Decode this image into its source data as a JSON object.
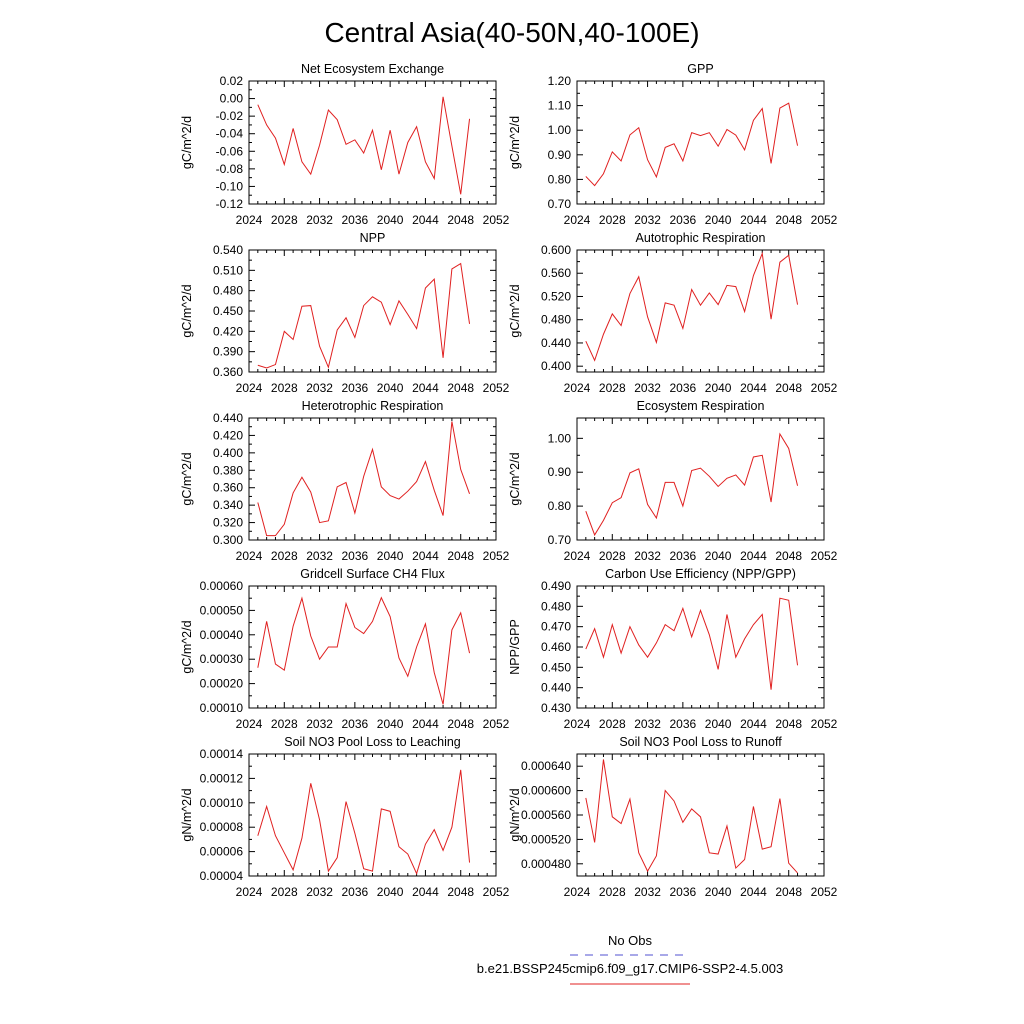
{
  "title": "Central Asia(40-50N,40-100E)",
  "legend": {
    "items": [
      {
        "label": "No Obs",
        "color": "#5050d0",
        "style": "dashed"
      },
      {
        "label": "b.e21.BSSP245cmip6.f09_g17.CMIP6-SSP2-4.5.003",
        "color": "#e02020",
        "style": "solid"
      }
    ]
  },
  "chart_data": [
    {
      "type": "line",
      "title": "Net Ecosystem Exchange",
      "ylabel": "gC/m^2/d",
      "xlim": [
        2024,
        2052
      ],
      "xticks": [
        2024,
        2028,
        2032,
        2036,
        2040,
        2044,
        2048,
        2052
      ],
      "ylim": [
        -0.12,
        0.02
      ],
      "yticks": [
        "-0.12",
        "-0.10",
        "-0.08",
        "-0.06",
        "-0.04",
        "-0.02",
        "0.00",
        "0.02"
      ],
      "yminor": 1,
      "grid": false,
      "x": [
        2025,
        2026,
        2027,
        2028,
        2029,
        2030,
        2031,
        2032,
        2033,
        2034,
        2035,
        2036,
        2037,
        2038,
        2039,
        2040,
        2041,
        2042,
        2043,
        2044,
        2045,
        2046,
        2047,
        2048,
        2049
      ],
      "series": [
        {
          "color": "#e02020",
          "values": [
            -0.007,
            -0.03,
            -0.045,
            -0.075,
            -0.034,
            -0.072,
            -0.086,
            -0.053,
            -0.013,
            -0.024,
            -0.052,
            -0.047,
            -0.062,
            -0.036,
            -0.081,
            -0.036,
            -0.086,
            -0.05,
            -0.032,
            -0.072,
            -0.091,
            0.002,
            -0.054,
            -0.109,
            -0.023
          ]
        }
      ]
    },
    {
      "type": "line",
      "title": "GPP",
      "ylabel": "gC/m^2/d",
      "xlim": [
        2024,
        2052
      ],
      "xticks": [
        2024,
        2028,
        2032,
        2036,
        2040,
        2044,
        2048,
        2052
      ],
      "ylim": [
        0.7,
        1.2
      ],
      "yticks": [
        "0.70",
        "0.80",
        "0.90",
        "1.00",
        "1.10",
        "1.20"
      ],
      "yminor": 1,
      "grid": false,
      "x": [
        2025,
        2026,
        2027,
        2028,
        2029,
        2030,
        2031,
        2032,
        2033,
        2034,
        2035,
        2036,
        2037,
        2038,
        2039,
        2040,
        2041,
        2042,
        2043,
        2044,
        2045,
        2046,
        2047,
        2048,
        2049
      ],
      "series": [
        {
          "color": "#e02020",
          "values": [
            0.812,
            0.775,
            0.823,
            0.912,
            0.875,
            0.981,
            1.01,
            0.88,
            0.81,
            0.93,
            0.945,
            0.875,
            0.99,
            0.978,
            0.99,
            0.935,
            1.003,
            0.98,
            0.92,
            1.04,
            1.088,
            0.865,
            1.09,
            1.11,
            0.937
          ]
        }
      ]
    },
    {
      "type": "line",
      "title": "NPP",
      "ylabel": "gC/m^2/d",
      "xlim": [
        2024,
        2052
      ],
      "xticks": [
        2024,
        2028,
        2032,
        2036,
        2040,
        2044,
        2048,
        2052
      ],
      "ylim": [
        0.36,
        0.54
      ],
      "yticks": [
        "0.360",
        "0.390",
        "0.420",
        "0.450",
        "0.480",
        "0.510",
        "0.540"
      ],
      "yminor": 1,
      "grid": false,
      "x": [
        2025,
        2026,
        2027,
        2028,
        2029,
        2030,
        2031,
        2032,
        2033,
        2034,
        2035,
        2036,
        2037,
        2038,
        2039,
        2040,
        2041,
        2042,
        2043,
        2044,
        2045,
        2046,
        2047,
        2048,
        2049
      ],
      "series": [
        {
          "color": "#e02020",
          "values": [
            0.37,
            0.366,
            0.371,
            0.42,
            0.408,
            0.457,
            0.458,
            0.398,
            0.367,
            0.422,
            0.44,
            0.411,
            0.458,
            0.471,
            0.463,
            0.43,
            0.465,
            0.445,
            0.424,
            0.484,
            0.497,
            0.381,
            0.512,
            0.52,
            0.431
          ]
        }
      ]
    },
    {
      "type": "line",
      "title": "Autotrophic Respiration",
      "ylabel": "gC/m^2/d",
      "xlim": [
        2024,
        2052
      ],
      "xticks": [
        2024,
        2028,
        2032,
        2036,
        2040,
        2044,
        2048,
        2052
      ],
      "ylim": [
        0.39,
        0.6
      ],
      "yticks": [
        "0.400",
        "0.440",
        "0.480",
        "0.520",
        "0.560",
        "0.600"
      ],
      "ytickvals": [
        0.4,
        0.44,
        0.48,
        0.52,
        0.56,
        0.6
      ],
      "yminor": 1,
      "grid": false,
      "x": [
        2025,
        2026,
        2027,
        2028,
        2029,
        2030,
        2031,
        2032,
        2033,
        2034,
        2035,
        2036,
        2037,
        2038,
        2039,
        2040,
        2041,
        2042,
        2043,
        2044,
        2045,
        2046,
        2047,
        2048,
        2049
      ],
      "series": [
        {
          "color": "#e02020",
          "values": [
            0.443,
            0.41,
            0.455,
            0.49,
            0.47,
            0.525,
            0.554,
            0.485,
            0.441,
            0.509,
            0.505,
            0.465,
            0.532,
            0.505,
            0.526,
            0.506,
            0.539,
            0.537,
            0.494,
            0.556,
            0.594,
            0.481,
            0.579,
            0.591,
            0.506
          ]
        }
      ]
    },
    {
      "type": "line",
      "title": "Heterotrophic Respiration",
      "ylabel": "gC/m^2/d",
      "xlim": [
        2024,
        2052
      ],
      "xticks": [
        2024,
        2028,
        2032,
        2036,
        2040,
        2044,
        2048,
        2052
      ],
      "ylim": [
        0.3,
        0.44
      ],
      "yticks": [
        "0.300",
        "0.320",
        "0.340",
        "0.360",
        "0.380",
        "0.400",
        "0.420",
        "0.440"
      ],
      "yminor": 1,
      "grid": false,
      "x": [
        2025,
        2026,
        2027,
        2028,
        2029,
        2030,
        2031,
        2032,
        2033,
        2034,
        2035,
        2036,
        2037,
        2038,
        2039,
        2040,
        2041,
        2042,
        2043,
        2044,
        2045,
        2046,
        2047,
        2048,
        2049
      ],
      "series": [
        {
          "color": "#e02020",
          "values": [
            0.343,
            0.305,
            0.305,
            0.318,
            0.354,
            0.372,
            0.355,
            0.32,
            0.322,
            0.361,
            0.366,
            0.331,
            0.373,
            0.404,
            0.361,
            0.351,
            0.347,
            0.356,
            0.367,
            0.39,
            0.357,
            0.328,
            0.436,
            0.381,
            0.353
          ]
        }
      ]
    },
    {
      "type": "line",
      "title": "Ecosystem Respiration",
      "ylabel": "gC/m^2/d",
      "xlim": [
        2024,
        2052
      ],
      "xticks": [
        2024,
        2028,
        2032,
        2036,
        2040,
        2044,
        2048,
        2052
      ],
      "ylim": [
        0.7,
        1.06
      ],
      "yticks": [
        "0.70",
        "0.80",
        "0.90",
        "1.00"
      ],
      "ytickvals": [
        0.7,
        0.8,
        0.9,
        1.0
      ],
      "yminor": 1,
      "grid": false,
      "x": [
        2025,
        2026,
        2027,
        2028,
        2029,
        2030,
        2031,
        2032,
        2033,
        2034,
        2035,
        2036,
        2037,
        2038,
        2039,
        2040,
        2041,
        2042,
        2043,
        2044,
        2045,
        2046,
        2047,
        2048,
        2049
      ],
      "series": [
        {
          "color": "#e02020",
          "values": [
            0.785,
            0.715,
            0.758,
            0.81,
            0.825,
            0.898,
            0.91,
            0.805,
            0.765,
            0.87,
            0.87,
            0.8,
            0.905,
            0.912,
            0.888,
            0.858,
            0.882,
            0.892,
            0.862,
            0.945,
            0.95,
            0.812,
            1.013,
            0.97,
            0.86
          ]
        }
      ]
    },
    {
      "type": "line",
      "title": "Gridcell Surface CH4 Flux",
      "ylabel": "gC/m^2/d",
      "xlim": [
        2024,
        2052
      ],
      "xticks": [
        2024,
        2028,
        2032,
        2036,
        2040,
        2044,
        2048,
        2052
      ],
      "ylim": [
        0.0001,
        0.0006
      ],
      "yticks": [
        "0.00010",
        "0.00020",
        "0.00030",
        "0.00040",
        "0.00050",
        "0.00060"
      ],
      "yminor": 1,
      "grid": false,
      "x": [
        2025,
        2026,
        2027,
        2028,
        2029,
        2030,
        2031,
        2032,
        2033,
        2034,
        2035,
        2036,
        2037,
        2038,
        2039,
        2040,
        2041,
        2042,
        2043,
        2044,
        2045,
        2046,
        2047,
        2048,
        2049
      ],
      "series": [
        {
          "color": "#e02020",
          "values": [
            0.000265,
            0.000455,
            0.00028,
            0.000255,
            0.000435,
            0.00055,
            0.000395,
            0.0003,
            0.00035,
            0.00035,
            0.000528,
            0.00043,
            0.000405,
            0.000455,
            0.000552,
            0.000475,
            0.000305,
            0.00023,
            0.00035,
            0.000445,
            0.000245,
            0.000115,
            0.00042,
            0.00049,
            0.000325
          ]
        }
      ]
    },
    {
      "type": "line",
      "title": "Carbon Use Efficiency (NPP/GPP)",
      "ylabel": "NPP/GPP",
      "xlim": [
        2024,
        2052
      ],
      "xticks": [
        2024,
        2028,
        2032,
        2036,
        2040,
        2044,
        2048,
        2052
      ],
      "ylim": [
        0.43,
        0.49
      ],
      "yticks": [
        "0.430",
        "0.440",
        "0.450",
        "0.460",
        "0.470",
        "0.480",
        "0.490"
      ],
      "yminor": 1,
      "grid": false,
      "x": [
        2025,
        2026,
        2027,
        2028,
        2029,
        2030,
        2031,
        2032,
        2033,
        2034,
        2035,
        2036,
        2037,
        2038,
        2039,
        2040,
        2041,
        2042,
        2043,
        2044,
        2045,
        2046,
        2047,
        2048,
        2049
      ],
      "series": [
        {
          "color": "#e02020",
          "values": [
            0.459,
            0.469,
            0.455,
            0.471,
            0.457,
            0.47,
            0.461,
            0.455,
            0.462,
            0.471,
            0.468,
            0.479,
            0.465,
            0.478,
            0.466,
            0.449,
            0.476,
            0.455,
            0.464,
            0.471,
            0.476,
            0.439,
            0.484,
            0.483,
            0.451
          ]
        }
      ]
    },
    {
      "type": "line",
      "title": "Soil NO3 Pool Loss to Leaching",
      "ylabel": "gN/m^2/d",
      "xlim": [
        2024,
        2052
      ],
      "xticks": [
        2024,
        2028,
        2032,
        2036,
        2040,
        2044,
        2048,
        2052
      ],
      "ylim": [
        4e-05,
        0.00014
      ],
      "yticks": [
        "0.00004",
        "0.00006",
        "0.00008",
        "0.00010",
        "0.00012",
        "0.00014"
      ],
      "yminor": 1,
      "grid": false,
      "x": [
        2025,
        2026,
        2027,
        2028,
        2029,
        2030,
        2031,
        2032,
        2033,
        2034,
        2035,
        2036,
        2037,
        2038,
        2039,
        2040,
        2041,
        2042,
        2043,
        2044,
        2045,
        2046,
        2047,
        2048,
        2049
      ],
      "series": [
        {
          "color": "#e02020",
          "values": [
            7.3e-05,
            9.7e-05,
            7.3e-05,
            5.9e-05,
            4.5e-05,
            7.1e-05,
            0.000116,
            8.6e-05,
            4.4e-05,
            5.5e-05,
            0.000101,
            7.5e-05,
            4.6e-05,
            4.4e-05,
            9.5e-05,
            9.3e-05,
            6.4e-05,
            5.8e-05,
            4.2e-05,
            6.6e-05,
            7.8e-05,
            6.1e-05,
            8e-05,
            0.000127,
            5.1e-05
          ]
        }
      ]
    },
    {
      "type": "line",
      "title": "Soil NO3 Pool Loss to Runoff",
      "ylabel": "gN/m^2/d",
      "xlim": [
        2024,
        2052
      ],
      "xticks": [
        2024,
        2028,
        2032,
        2036,
        2040,
        2044,
        2048,
        2052
      ],
      "ylim": [
        0.00046,
        0.00066
      ],
      "yticks": [
        "0.000480",
        "0.000520",
        "0.000560",
        "0.000600",
        "0.000640"
      ],
      "ytickvals": [
        0.00048,
        0.00052,
        0.00056,
        0.0006,
        0.00064
      ],
      "yminor": 1,
      "grid": false,
      "x": [
        2025,
        2026,
        2027,
        2028,
        2029,
        2030,
        2031,
        2032,
        2033,
        2034,
        2035,
        2036,
        2037,
        2038,
        2039,
        2040,
        2041,
        2042,
        2043,
        2044,
        2045,
        2046,
        2047,
        2048,
        2049
      ],
      "series": [
        {
          "color": "#e02020",
          "values": [
            0.000588,
            0.000515,
            0.000651,
            0.000557,
            0.000546,
            0.000586,
            0.000498,
            0.000468,
            0.000493,
            0.0006,
            0.000583,
            0.000548,
            0.00057,
            0.000557,
            0.000498,
            0.000496,
            0.000542,
            0.000473,
            0.000487,
            0.000574,
            0.000504,
            0.000508,
            0.000587,
            0.000481,
            0.000465
          ]
        }
      ]
    }
  ]
}
